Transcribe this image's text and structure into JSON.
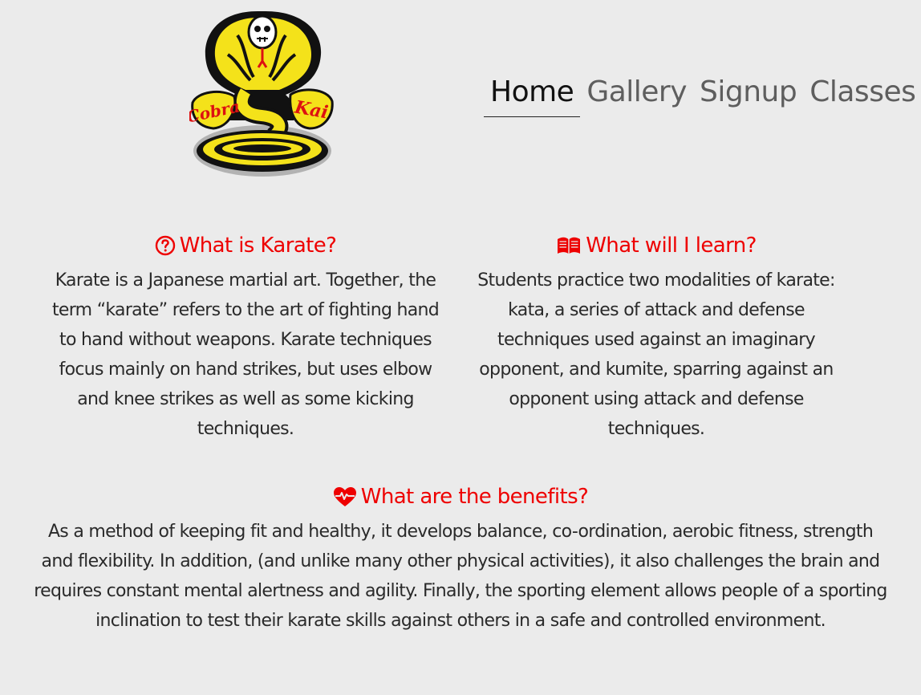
{
  "logo": {
    "text_left": "Cobra",
    "text_right": "Kai"
  },
  "nav": {
    "items": [
      {
        "label": "Home",
        "active": true
      },
      {
        "label": "Gallery",
        "active": false
      },
      {
        "label": "Signup",
        "active": false
      },
      {
        "label": "Classes",
        "active": false
      }
    ]
  },
  "sections": {
    "what_is": {
      "icon": "question-circle-icon",
      "title": "What is Karate?",
      "text": "Karate is a Japanese martial art. Together, the term “karate” refers to the art of fighting hand to hand without weapons. Karate techniques focus mainly on hand strikes, but uses elbow and knee strikes as well as some kicking techniques."
    },
    "learn": {
      "icon": "book-open-icon",
      "title": "What will I learn?",
      "text": "Students practice two modalities of karate: kata, a series of attack and defense techniques used against an imaginary opponent, and kumite, sparring against an opponent using attack and defense techniques."
    },
    "benefits": {
      "icon": "heartbeat-icon",
      "title": "What are the benefits?",
      "text": "As a method of keeping fit and healthy, it develops balance, co-ordination, aerobic fitness, strength and flexibility. In addition, (and unlike many other physical activities), it also challenges the brain and requires constant mental alertness and agility. Finally, the sporting element allows people of a sporting inclination to test their karate skills against others in a safe and controlled environment."
    }
  },
  "colors": {
    "accent": "#ee0000",
    "background": "#ebebeb",
    "nav_inactive": "#5e5e5e",
    "nav_active": "#111111"
  }
}
